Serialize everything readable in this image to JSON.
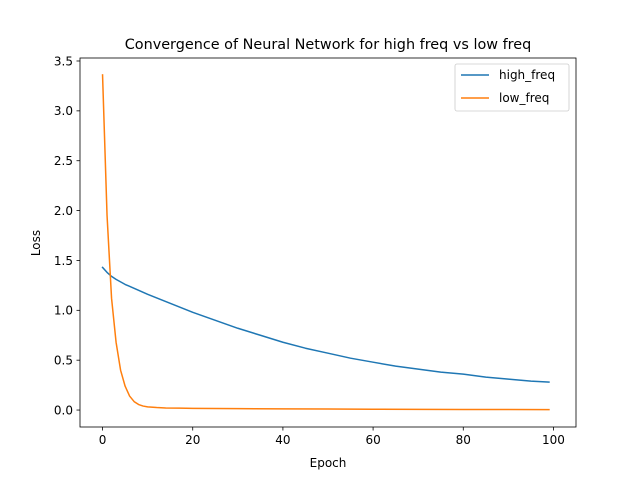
{
  "chart_data": {
    "type": "line",
    "title": "Convergence of Neural Network for high freq vs low freq",
    "xlabel": "Epoch",
    "ylabel": "Loss",
    "xlim": [
      -5,
      105
    ],
    "ylim": [
      -0.17,
      3.53
    ],
    "xticks": [
      0,
      20,
      40,
      60,
      80,
      100
    ],
    "xtick_labels": [
      "0",
      "20",
      "40",
      "60",
      "80",
      "100"
    ],
    "yticks": [
      0.0,
      0.5,
      1.0,
      1.5,
      2.0,
      2.5,
      3.0,
      3.5
    ],
    "ytick_labels": [
      "0.0",
      "0.5",
      "1.0",
      "1.5",
      "2.0",
      "2.5",
      "3.0",
      "3.5"
    ],
    "grid": false,
    "legend_position": "top-right",
    "series": [
      {
        "name": "high_freq",
        "color": "#1f77b4",
        "x": [
          0,
          1,
          2,
          3,
          5,
          8,
          10,
          15,
          20,
          25,
          30,
          35,
          40,
          45,
          50,
          55,
          60,
          65,
          70,
          75,
          80,
          85,
          90,
          95,
          99
        ],
        "y": [
          1.43,
          1.38,
          1.34,
          1.31,
          1.26,
          1.2,
          1.16,
          1.07,
          0.98,
          0.9,
          0.82,
          0.75,
          0.68,
          0.62,
          0.57,
          0.52,
          0.48,
          0.44,
          0.41,
          0.38,
          0.36,
          0.33,
          0.31,
          0.29,
          0.28
        ]
      },
      {
        "name": "low_freq",
        "color": "#ff7f0e",
        "x": [
          0,
          1,
          2,
          3,
          4,
          5,
          6,
          7,
          8,
          9,
          10,
          12,
          14,
          17,
          20,
          30,
          40,
          50,
          60,
          70,
          80,
          90,
          99
        ],
        "y": [
          3.36,
          1.95,
          1.12,
          0.68,
          0.4,
          0.24,
          0.14,
          0.085,
          0.055,
          0.04,
          0.032,
          0.025,
          0.021,
          0.019,
          0.017,
          0.014,
          0.012,
          0.01,
          0.008,
          0.007,
          0.006,
          0.005,
          0.004
        ]
      }
    ]
  }
}
